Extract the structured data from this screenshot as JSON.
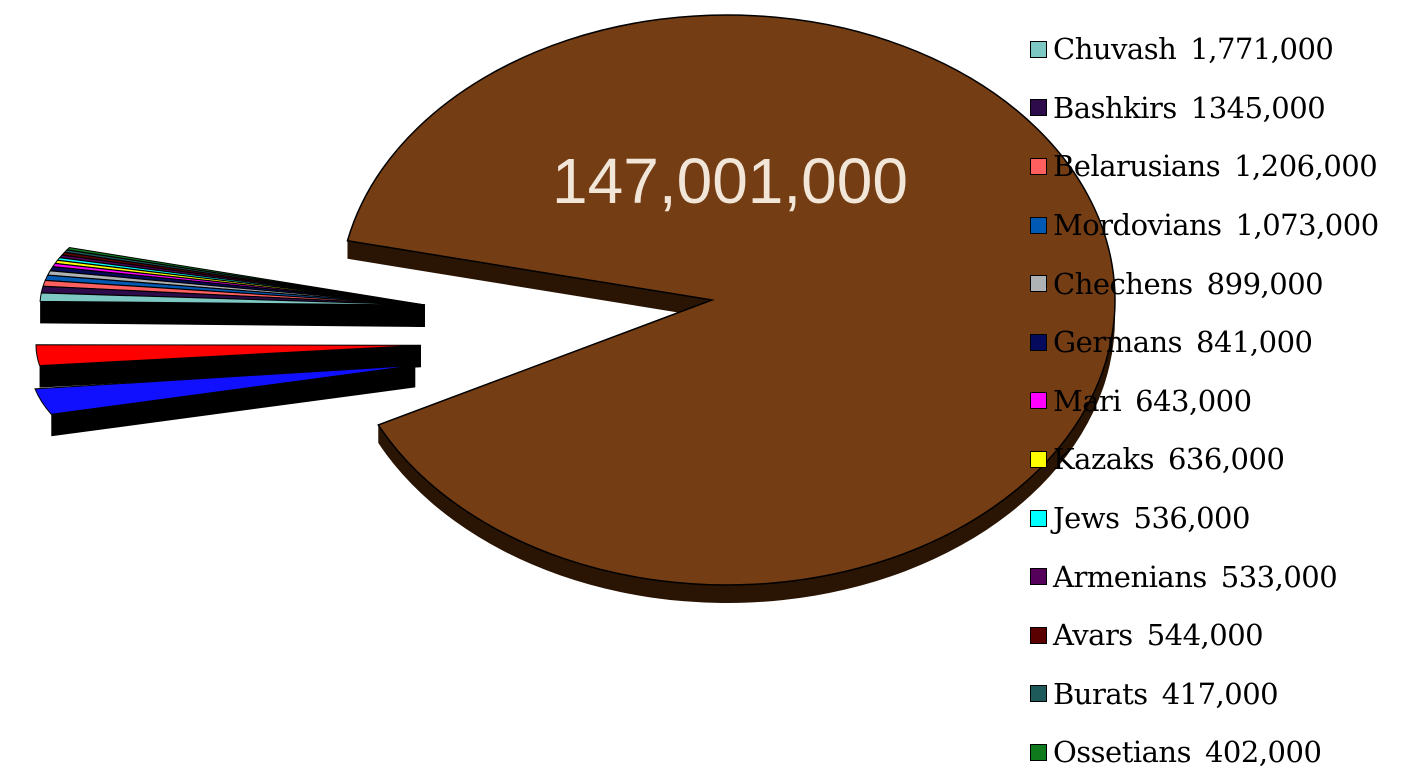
{
  "chart_data": {
    "type": "pie",
    "title": "",
    "three_d": true,
    "exploded": true,
    "legend_position": "right",
    "main_slice": {
      "name": "",
      "value": 147001000,
      "label": "147,001,000",
      "color": "#743d14",
      "side_color": "#2a1505"
    },
    "slices": [
      {
        "name": "Chuvash",
        "value_label": "1,771,000",
        "value": 1771000,
        "color": "#7ec8c4"
      },
      {
        "name": "Bashkirs",
        "value_label": "1345,000",
        "value": 1345000,
        "color": "#2e0b4a"
      },
      {
        "name": "Belarusians",
        "value_label": "1,206,000",
        "value": 1206000,
        "color": "#ff5f5f"
      },
      {
        "name": "Mordovians",
        "value_label": "1,073,000",
        "value": 1073000,
        "color": "#005ab4"
      },
      {
        "name": "Chechens",
        "value_label": "899,000",
        "value": 899000,
        "color": "#aeb2b4"
      },
      {
        "name": "Germans",
        "value_label": "841,000",
        "value": 841000,
        "color": "#050a5c"
      },
      {
        "name": "Mari",
        "value_label": "643,000",
        "value": 643000,
        "color": "#ff00ff"
      },
      {
        "name": "Kazaks",
        "value_label": "636,000",
        "value": 636000,
        "color": "#ffff00"
      },
      {
        "name": "Jews",
        "value_label": "536,000",
        "value": 536000,
        "color": "#00ffff"
      },
      {
        "name": "Armenians",
        "value_label": "533,000",
        "value": 533000,
        "color": "#55005a"
      },
      {
        "name": "Avars",
        "value_label": "544,000",
        "value": 544000,
        "color": "#5a0000"
      },
      {
        "name": "Burats",
        "value_label": "417,000",
        "value": 417000,
        "color": "#1f5a5a"
      },
      {
        "name": "Ossetians",
        "value_label": "402,000",
        "value": 402000,
        "color": "#0f7a1c"
      }
    ],
    "unlabeled_slices": [
      {
        "color": "#1010ff"
      },
      {
        "color": "#ff0000"
      }
    ]
  }
}
